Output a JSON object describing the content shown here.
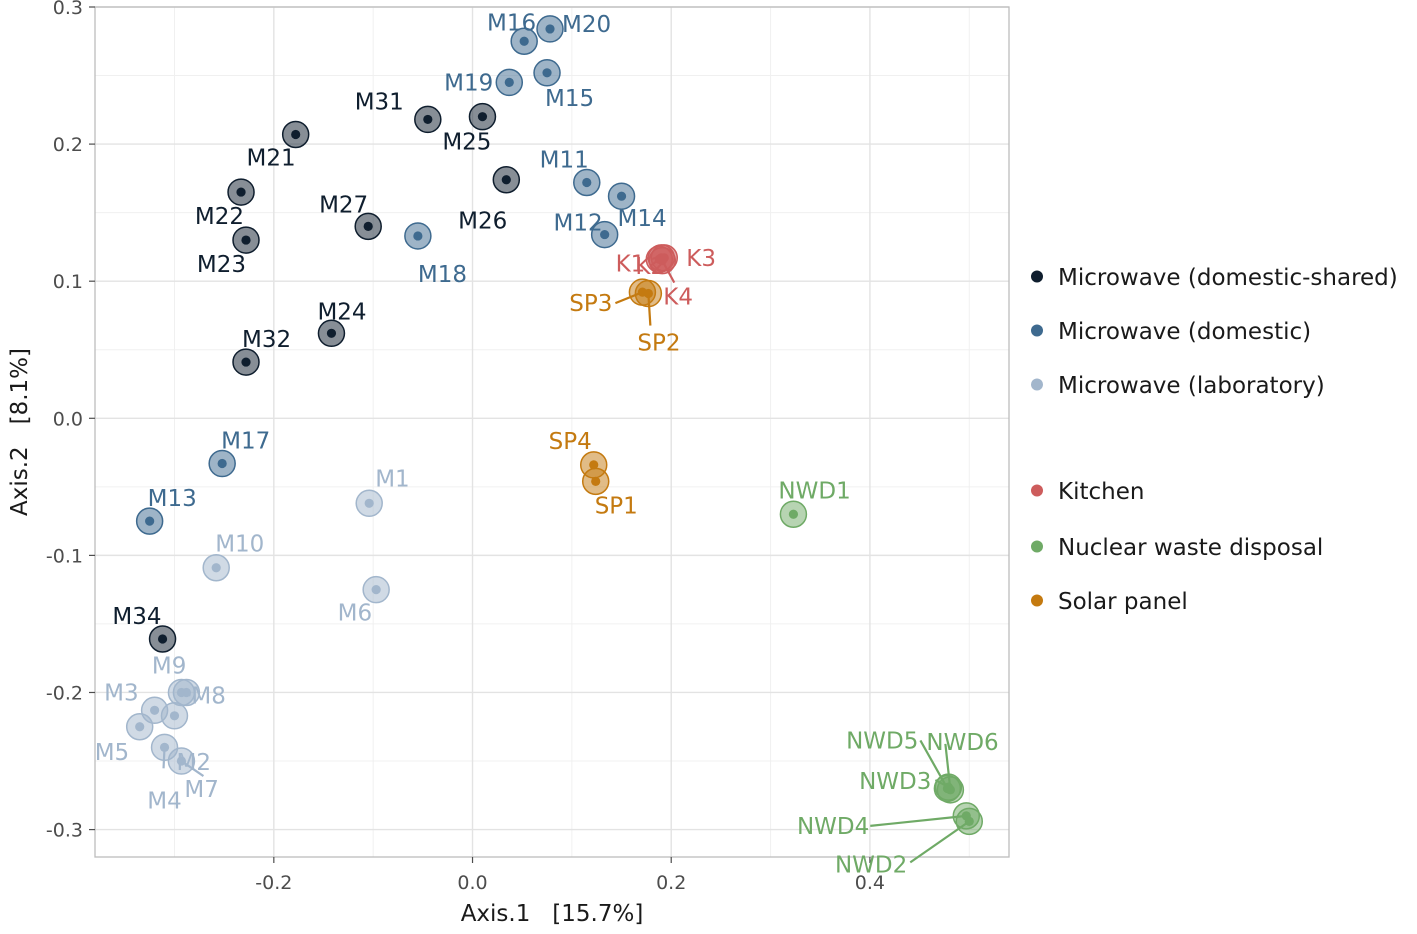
{
  "chart_data": {
    "type": "scatter",
    "xlabel": "Axis.1   [15.7%]",
    "ylabel": "Axis.2   [8.1%]",
    "xlim": [
      -0.38,
      0.54
    ],
    "ylim": [
      -0.32,
      0.3
    ],
    "x_ticks": [
      -0.2,
      0.0,
      0.2,
      0.4
    ],
    "x_tick_labels": [
      "-0.2",
      "0.0",
      "0.2",
      "0.4"
    ],
    "y_ticks": [
      -0.3,
      -0.2,
      -0.1,
      0.0,
      0.1,
      0.2,
      0.3
    ],
    "y_tick_labels": [
      "-0.3",
      "-0.2",
      "-0.1",
      "0.0",
      "0.1",
      "0.2",
      "0.3"
    ],
    "grid": true,
    "legend_position": "right",
    "groups": [
      {
        "id": "ds",
        "name": "Microwave (domestic-shared)",
        "color": "#0f1e2e"
      },
      {
        "id": "dom",
        "name": "Microwave (domestic)",
        "color": "#3e6a8f"
      },
      {
        "id": "lab",
        "name": "Microwave (laboratory)",
        "color": "#a2b6cc"
      },
      {
        "id": "kit",
        "name": "Kitchen",
        "color": "#cd5c5c"
      },
      {
        "id": "nwd",
        "name": "Nuclear waste disposal",
        "color": "#6faa66"
      },
      {
        "id": "sp",
        "name": "Solar panel",
        "color": "#c47a10"
      }
    ],
    "points": [
      {
        "label": "M20",
        "group": "dom",
        "x": 0.078,
        "y": 0.284
      },
      {
        "label": "M16",
        "group": "dom",
        "x": 0.052,
        "y": 0.275
      },
      {
        "label": "M15",
        "group": "dom",
        "x": 0.075,
        "y": 0.252
      },
      {
        "label": "M19",
        "group": "dom",
        "x": 0.037,
        "y": 0.245
      },
      {
        "label": "M31",
        "group": "ds",
        "x": -0.045,
        "y": 0.218
      },
      {
        "label": "M25",
        "group": "ds",
        "x": 0.01,
        "y": 0.22
      },
      {
        "label": "M21",
        "group": "ds",
        "x": -0.178,
        "y": 0.207
      },
      {
        "label": "M26",
        "group": "ds",
        "x": 0.034,
        "y": 0.174
      },
      {
        "label": "M11",
        "group": "dom",
        "x": 0.115,
        "y": 0.172
      },
      {
        "label": "M14",
        "group": "dom",
        "x": 0.15,
        "y": 0.162
      },
      {
        "label": "M22",
        "group": "ds",
        "x": -0.233,
        "y": 0.165
      },
      {
        "label": "M27",
        "group": "ds",
        "x": -0.105,
        "y": 0.14
      },
      {
        "label": "M12",
        "group": "dom",
        "x": 0.133,
        "y": 0.134
      },
      {
        "label": "M18",
        "group": "dom",
        "x": -0.055,
        "y": 0.133
      },
      {
        "label": "M23",
        "group": "ds",
        "x": -0.228,
        "y": 0.13
      },
      {
        "label": "K2",
        "group": "kit",
        "x": 0.19,
        "y": 0.117
      },
      {
        "label": "K3",
        "group": "kit",
        "x": 0.193,
        "y": 0.117
      },
      {
        "label": "K1",
        "group": "kit",
        "x": 0.188,
        "y": 0.116
      },
      {
        "label": "K4",
        "group": "kit",
        "x": 0.191,
        "y": 0.115
      },
      {
        "label": "SP3",
        "group": "sp",
        "x": 0.171,
        "y": 0.092
      },
      {
        "label": "SP2",
        "group": "sp",
        "x": 0.177,
        "y": 0.091
      },
      {
        "label": "M24",
        "group": "ds",
        "x": -0.142,
        "y": 0.062
      },
      {
        "label": "M32",
        "group": "ds",
        "x": -0.228,
        "y": 0.041
      },
      {
        "label": "SP4",
        "group": "sp",
        "x": 0.122,
        "y": -0.034
      },
      {
        "label": "SP1",
        "group": "sp",
        "x": 0.124,
        "y": -0.046
      },
      {
        "label": "M17",
        "group": "dom",
        "x": -0.252,
        "y": -0.033
      },
      {
        "label": "NWD1",
        "group": "nwd",
        "x": 0.323,
        "y": -0.07
      },
      {
        "label": "M1",
        "group": "lab",
        "x": -0.104,
        "y": -0.062
      },
      {
        "label": "M13",
        "group": "dom",
        "x": -0.325,
        "y": -0.075
      },
      {
        "label": "M10",
        "group": "lab",
        "x": -0.258,
        "y": -0.109
      },
      {
        "label": "M6",
        "group": "lab",
        "x": -0.097,
        "y": -0.125
      },
      {
        "label": "M34",
        "group": "ds",
        "x": -0.312,
        "y": -0.161
      },
      {
        "label": "M9",
        "group": "lab",
        "x": -0.288,
        "y": -0.2
      },
      {
        "label": "M8",
        "group": "lab",
        "x": -0.293,
        "y": -0.2
      },
      {
        "label": "M3",
        "group": "lab",
        "x": -0.32,
        "y": -0.213
      },
      {
        "label": "M2",
        "group": "lab",
        "x": -0.3,
        "y": -0.217
      },
      {
        "label": "M5",
        "group": "lab",
        "x": -0.335,
        "y": -0.225
      },
      {
        "label": "M4",
        "group": "lab",
        "x": -0.31,
        "y": -0.24
      },
      {
        "label": "M7",
        "group": "lab",
        "x": -0.293,
        "y": -0.25
      },
      {
        "label": "NWD3",
        "group": "nwd",
        "x": 0.479,
        "y": -0.269
      },
      {
        "label": "NWD5",
        "group": "nwd",
        "x": 0.478,
        "y": -0.27
      },
      {
        "label": "NWD6",
        "group": "nwd",
        "x": 0.481,
        "y": -0.271
      },
      {
        "label": "NWD4",
        "group": "nwd",
        "x": 0.497,
        "y": -0.29
      },
      {
        "label": "NWD2",
        "group": "nwd",
        "x": 0.5,
        "y": -0.294
      }
    ]
  }
}
